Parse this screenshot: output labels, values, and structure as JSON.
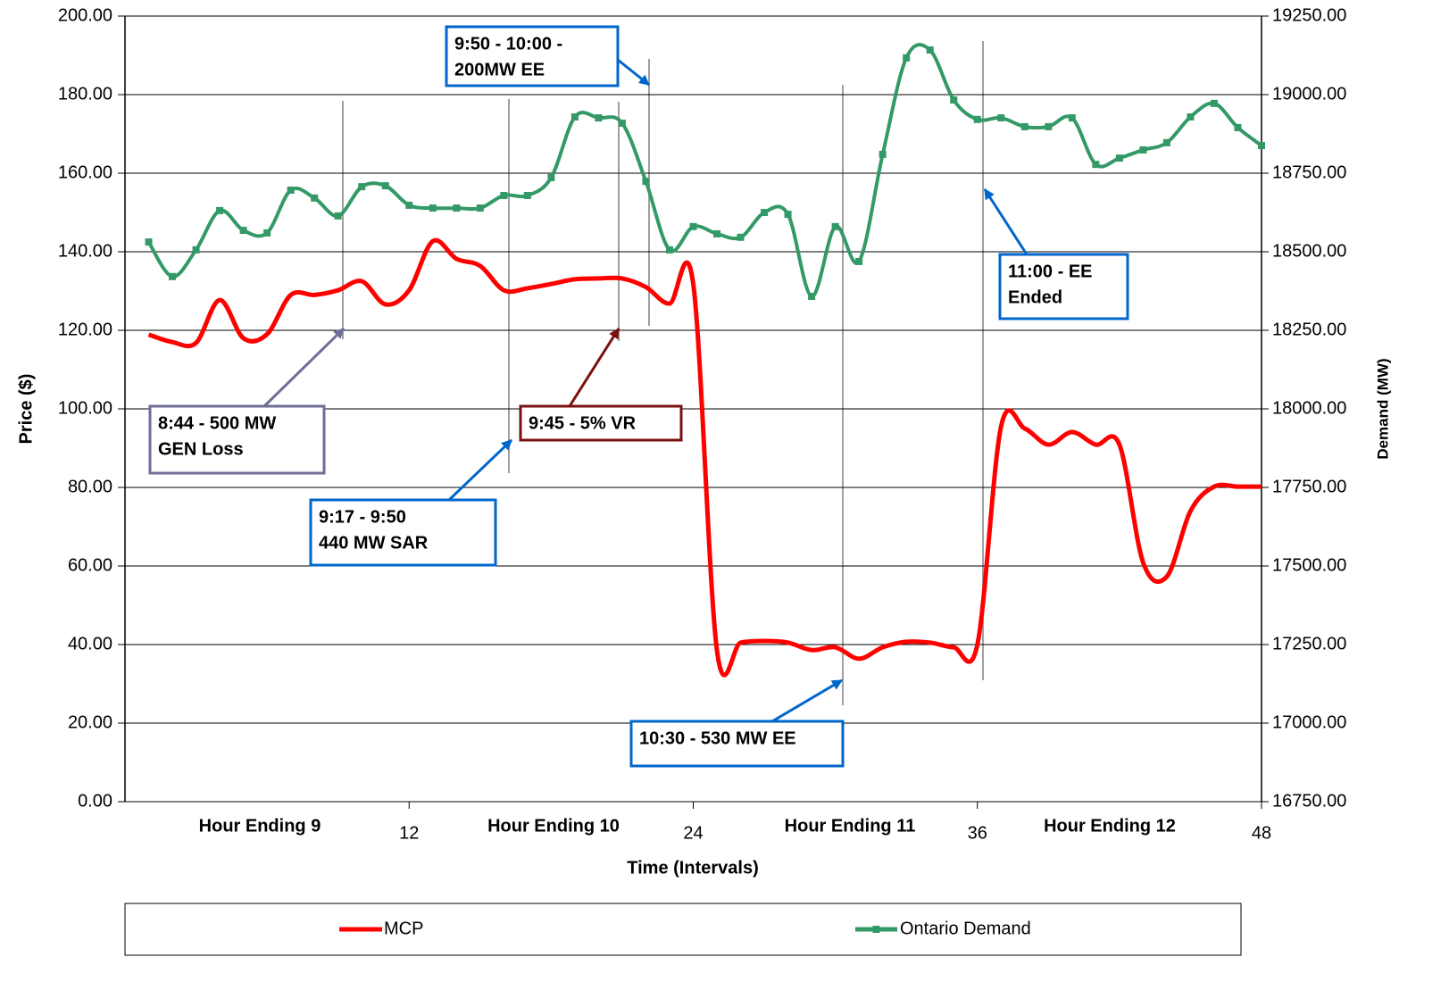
{
  "chart_data": {
    "type": "line",
    "x_label": "Time (Intervals)",
    "y_label": "Price ($)",
    "y2_label": "Demand (MW)",
    "x": [
      1,
      2,
      3,
      4,
      5,
      6,
      7,
      8,
      9,
      10,
      11,
      12,
      13,
      14,
      15,
      16,
      17,
      18,
      19,
      20,
      21,
      22,
      23,
      24,
      25,
      26,
      27,
      28,
      29,
      30,
      31,
      32,
      33,
      34,
      35,
      36,
      37,
      38,
      39,
      40,
      41,
      42,
      43,
      44,
      45,
      46,
      47,
      48
    ],
    "xlim": [
      0,
      48
    ],
    "xticks": [
      12,
      24,
      36,
      48
    ],
    "x_group_labels": [
      "Hour Ending 9",
      "Hour Ending 10",
      "Hour Ending 11",
      "Hour Ending 12"
    ],
    "ylim": [
      0,
      200
    ],
    "yticks": [
      {
        "value": 0,
        "label": "0.00"
      },
      {
        "value": 20,
        "label": "20.00"
      },
      {
        "value": 40,
        "label": "40.00"
      },
      {
        "value": 60,
        "label": "60.00"
      },
      {
        "value": 80,
        "label": "80.00"
      },
      {
        "value": 100,
        "label": "100.00"
      },
      {
        "value": 120,
        "label": "120.00"
      },
      {
        "value": 140,
        "label": "140.00"
      },
      {
        "value": 160,
        "label": "160.00"
      },
      {
        "value": 180,
        "label": "180.00"
      },
      {
        "value": 200,
        "label": "200.00"
      }
    ],
    "y2lim": [
      16750,
      19250
    ],
    "y2ticks": [
      {
        "value": 16750,
        "label": "16750.00"
      },
      {
        "value": 17000,
        "label": "17000.00"
      },
      {
        "value": 17250,
        "label": "17250.00"
      },
      {
        "value": 17500,
        "label": "17500.00"
      },
      {
        "value": 17750,
        "label": "17750.00"
      },
      {
        "value": 18000,
        "label": "18000.00"
      },
      {
        "value": 18250,
        "label": "18250.00"
      },
      {
        "value": 18500,
        "label": "18500.00"
      },
      {
        "value": 18750,
        "label": "18750.00"
      },
      {
        "value": 19000,
        "label": "19000.00"
      },
      {
        "value": 19250,
        "label": "19250.00"
      }
    ],
    "grid": true,
    "legend": "bottom",
    "series": [
      {
        "name": "MCP",
        "color": "#ff0000",
        "values": [
          118.9,
          117,
          116.8,
          127.7,
          118,
          119,
          129,
          129,
          130.2,
          132.5,
          126.6,
          130.2,
          142.7,
          138.2,
          136.4,
          130.2,
          130.7,
          131.8,
          133,
          133.2,
          133.2,
          131,
          126.8,
          131.8,
          38.6,
          40.5,
          40.9,
          40.5,
          38.6,
          39.3,
          36.4,
          39.3,
          40.7,
          40.5,
          39.3,
          40,
          95.5,
          95,
          90.9,
          94.1,
          90.9,
          90.9,
          60.9,
          57.3,
          74,
          80.2,
          80.2,
          80.2
        ]
      },
      {
        "name": "Ontario Demand",
        "color": "#339966",
        "axis": "y2",
        "values": [
          18531,
          18421,
          18506,
          18631,
          18568,
          18560,
          18696,
          18671,
          18614,
          18707,
          18710,
          18648,
          18639,
          18639,
          18639,
          18679,
          18679,
          18736,
          18929,
          18926,
          18909,
          18724,
          18506,
          18580,
          18557,
          18546,
          18625,
          18619,
          18358,
          18580,
          18469,
          18810,
          19117,
          19142,
          18983,
          18921,
          18926,
          18898,
          18898,
          18926,
          18778,
          18798,
          18824,
          18847,
          18929,
          18972,
          18895,
          18838
        ]
      }
    ],
    "annotations": [
      {
        "text": [
          "9:50 - 10:00 -",
          "200MW  EE"
        ]
      },
      {
        "text": [
          "11:00 - EE",
          "Ended"
        ]
      },
      {
        "text": [
          "8:44 - 500 MW",
          "GEN Loss"
        ]
      },
      {
        "text": [
          "9:45 - 5% VR"
        ]
      },
      {
        "text": [
          "9:17 - 9:50",
          "440 MW SAR"
        ]
      },
      {
        "text": [
          "10:30 - 530 MW EE"
        ]
      }
    ]
  }
}
